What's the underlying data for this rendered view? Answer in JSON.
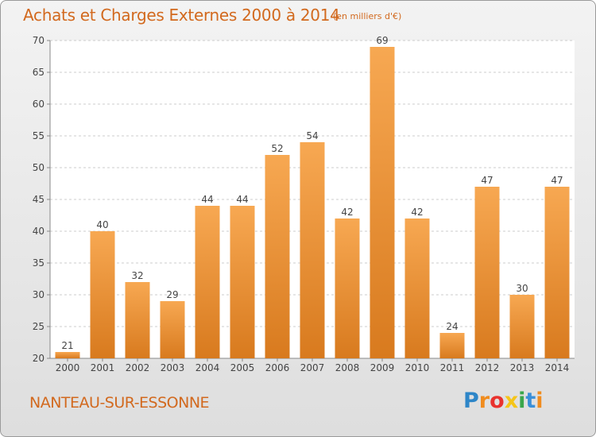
{
  "title": "Achats et Charges Externes 2000 à 2014",
  "subtitle": "(en milliers d'€)",
  "town": "NANTEAU-SUR-ESSONNE",
  "logo_text": "Proxiti",
  "colors": {
    "bar_light": "#f7a852",
    "bar_dark": "#d87a1e",
    "title": "#d2691e",
    "grid": "#cccccc"
  },
  "chart_data": {
    "type": "bar",
    "categories": [
      "2000",
      "2001",
      "2002",
      "2003",
      "2004",
      "2005",
      "2006",
      "2007",
      "2008",
      "2009",
      "2010",
      "2011",
      "2012",
      "2013",
      "2014"
    ],
    "values": [
      21,
      40,
      32,
      29,
      44,
      44,
      52,
      54,
      42,
      69,
      42,
      24,
      47,
      30,
      47
    ],
    "ylim": [
      20,
      70
    ],
    "yticks": [
      20,
      25,
      30,
      35,
      40,
      45,
      50,
      55,
      60,
      65,
      70
    ],
    "grid": true,
    "data_labels": true
  }
}
